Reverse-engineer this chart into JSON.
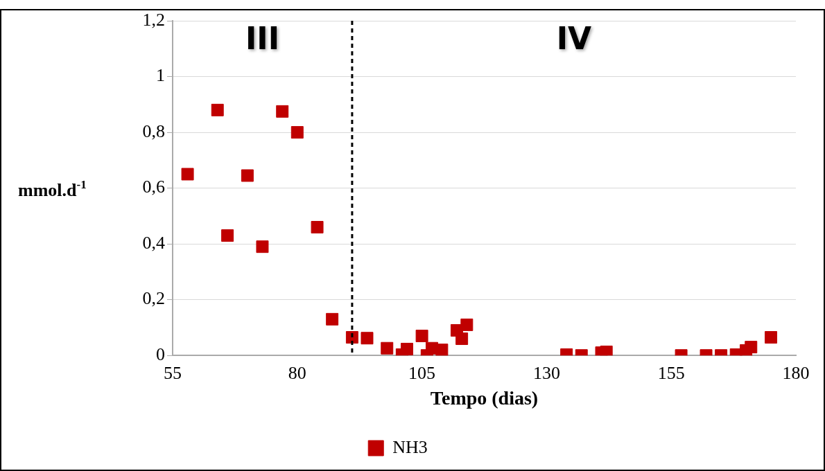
{
  "chart_data": {
    "type": "scatter",
    "xlabel": "Tempo (dias)",
    "ylabel": "mmol.d$^{-1}$",
    "xlim": [
      55,
      180
    ],
    "xticks": [
      55,
      80,
      105,
      130,
      155,
      180
    ],
    "ylim": [
      0,
      1.2
    ],
    "yticks": [
      {
        "value": 0,
        "label": "0"
      },
      {
        "value": 0.2,
        "label": "0,2"
      },
      {
        "value": 0.4,
        "label": "0,4"
      },
      {
        "value": 0.6,
        "label": "0,6"
      },
      {
        "value": 0.8,
        "label": "0,8"
      },
      {
        "value": 1,
        "label": "1"
      },
      {
        "value": 1.2,
        "label": "1,2"
      }
    ],
    "grid": "y",
    "legend": "bottom",
    "marker": "square",
    "series": [
      {
        "name": "NH3",
        "color": "#c00000",
        "x": [
          58,
          64,
          66,
          70,
          73,
          77,
          80,
          84,
          87,
          91,
          94,
          98,
          101,
          102,
          105,
          106,
          107,
          109,
          112,
          113,
          114,
          134,
          137,
          141,
          142,
          157,
          162,
          165,
          168,
          170,
          171,
          175
        ],
        "values": [
          0.65,
          0.88,
          0.43,
          0.645,
          0.39,
          0.875,
          0.8,
          0.46,
          0.13,
          0.065,
          0.062,
          0.026,
          0.003,
          0.023,
          0.07,
          0,
          0.026,
          0.02,
          0.09,
          0.06,
          0.11,
          0.003,
          0,
          0.01,
          0.013,
          0,
          0,
          0,
          0.003,
          0.018,
          0.03,
          0.065
        ]
      }
    ],
    "ref_lines": [
      {
        "axis": "x",
        "value": 91,
        "line_style": "dashed",
        "color": "#000000"
      }
    ],
    "annotations": [
      "III",
      "IV"
    ]
  }
}
